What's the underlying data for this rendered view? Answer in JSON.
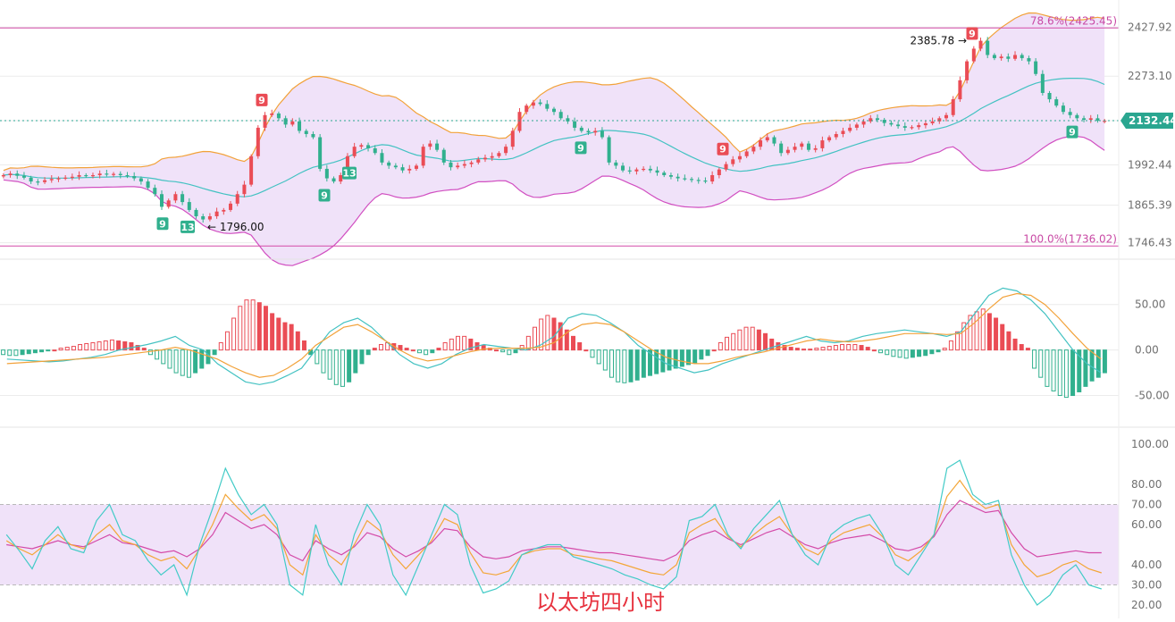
{
  "caption": "以太坊四小时",
  "colors": {
    "up": "#ea4c55",
    "down": "#31b08e",
    "band_fill": "#f0e2f9",
    "upper_band": "#f2a23a",
    "lower_band": "#d14fc1",
    "middle_band": "#43c2c2",
    "fib_line": "#d44aa8",
    "price_tag": "#2aa690",
    "rsi_fast": "#42cbc7",
    "rsi_mid": "#f3a637",
    "rsi_slow": "#d44aa8",
    "grid": "#ececec"
  },
  "chart_data": [
    {
      "type": "candlestick",
      "y_ticks": [
        "2427.92",
        "2273.10",
        "2132.44",
        "1992.44",
        "1865.39",
        "1746.43"
      ],
      "y_tick_values": [
        2427.92,
        2273.1,
        2132.44,
        1992.44,
        1865.39,
        1746.43
      ],
      "ylim": [
        1700,
        2480
      ],
      "last_price": "2132.44",
      "fib_levels": [
        {
          "label": "78.6%(2425.45)",
          "value": 2425.45
        },
        {
          "label": "100.0%(1736.02)",
          "value": 1736.02
        }
      ],
      "annotations": [
        {
          "text": "2385.78 →",
          "x": 1082,
          "y": 2385.78
        },
        {
          "text": "← 1796.00",
          "x": 232,
          "y": 1796.0
        }
      ],
      "markers": [
        {
          "text": "9",
          "kind": "down",
          "x": 182
        },
        {
          "text": "13",
          "kind": "down",
          "x": 210
        },
        {
          "text": "9",
          "kind": "up",
          "x": 293
        },
        {
          "text": "9",
          "kind": "down",
          "x": 363
        },
        {
          "text": "13",
          "kind": "down",
          "x": 391
        },
        {
          "text": "9",
          "kind": "up",
          "x": 809
        },
        {
          "text": "9",
          "kind": "down",
          "x": 650
        },
        {
          "text": "9",
          "kind": "up",
          "x": 1088
        },
        {
          "text": "9",
          "kind": "down",
          "x": 1200
        }
      ],
      "candles_close": [
        1960,
        1965,
        1958,
        1952,
        1940,
        1938,
        1944,
        1948,
        1950,
        1952,
        1955,
        1960,
        1958,
        1960,
        1965,
        1962,
        1964,
        1960,
        1957,
        1950,
        1940,
        1920,
        1900,
        1860,
        1880,
        1900,
        1875,
        1850,
        1830,
        1820,
        1830,
        1845,
        1850,
        1870,
        1900,
        1930,
        2020,
        2110,
        2150,
        2155,
        2140,
        2120,
        2130,
        2100,
        2090,
        2080,
        1980,
        1950,
        1940,
        1960,
        2020,
        2050,
        2055,
        2045,
        2030,
        2000,
        1990,
        1985,
        1975,
        1980,
        1990,
        2050,
        2060,
        2040,
        2000,
        1985,
        1990,
        1995,
        2000,
        2010,
        2015,
        2020,
        2030,
        2050,
        2100,
        2160,
        2180,
        2190,
        2185,
        2170,
        2160,
        2140,
        2130,
        2110,
        2100,
        2095,
        2100,
        2080,
        2000,
        1990,
        1975,
        1972,
        1978,
        1980,
        1975,
        1968,
        1960,
        1955,
        1950,
        1948,
        1945,
        1943,
        1940,
        1960,
        1978,
        1995,
        2010,
        2020,
        2035,
        2050,
        2070,
        2080,
        2060,
        2030,
        2040,
        2050,
        2060,
        2040,
        2045,
        2070,
        2080,
        2090,
        2100,
        2110,
        2120,
        2130,
        2140,
        2135,
        2125,
        2120,
        2115,
        2110,
        2112,
        2118,
        2124,
        2130,
        2140,
        2150,
        2200,
        2260,
        2320,
        2360,
        2385,
        2340,
        2330,
        2335,
        2328,
        2340,
        2330,
        2320,
        2280,
        2220,
        2200,
        2180,
        2160,
        2150,
        2140,
        2135,
        2140,
        2132,
        2132
      ]
    },
    {
      "type": "macd",
      "y_ticks": [
        "50.00",
        "0.00",
        "-50.00"
      ],
      "y_tick_values": [
        50,
        0,
        -50
      ],
      "ylim": [
        -75,
        90
      ],
      "histogram": [
        -5,
        -6,
        -6,
        -5,
        -4,
        -3,
        -2,
        -1,
        0,
        2,
        3,
        4,
        6,
        7,
        8,
        9,
        10,
        11,
        10,
        9,
        8,
        5,
        2,
        -5,
        -10,
        -15,
        -20,
        -25,
        -28,
        -30,
        -25,
        -20,
        -15,
        -5,
        8,
        20,
        35,
        48,
        55,
        55,
        52,
        48,
        40,
        35,
        30,
        28,
        20,
        10,
        -5,
        -15,
        -25,
        -32,
        -38,
        -40,
        -35,
        -25,
        -15,
        -5,
        2,
        6,
        8,
        7,
        5,
        2,
        0,
        -3,
        -5,
        -3,
        2,
        8,
        12,
        15,
        15,
        12,
        8,
        5,
        2,
        0,
        -2,
        -5,
        -3,
        5,
        15,
        25,
        34,
        38,
        35,
        30,
        22,
        15,
        8,
        0,
        -8,
        -15,
        -22,
        -30,
        -35,
        -36,
        -35,
        -33,
        -30,
        -28,
        -26,
        -24,
        -22,
        -20,
        -18,
        -16,
        -14,
        -10,
        -6,
        0,
        8,
        14,
        18,
        22,
        25,
        25,
        22,
        18,
        12,
        8,
        5,
        3,
        2,
        1,
        1,
        2,
        3,
        4,
        5,
        6,
        6,
        6,
        5,
        3,
        0,
        -3,
        -5,
        -7,
        -8,
        -9,
        -8,
        -7,
        -6,
        -4,
        -2,
        2,
        10,
        20,
        30,
        38,
        42,
        45,
        40,
        35,
        28,
        20,
        12,
        6,
        2,
        -20,
        -30,
        -40,
        -45,
        -50,
        -52,
        -50,
        -46,
        -40,
        -34,
        -30,
        -25
      ],
      "dif": [
        -10,
        -11,
        -12,
        -13,
        -12,
        -10,
        -8,
        -5,
        0,
        3,
        6,
        10,
        15,
        5,
        0,
        -15,
        -25,
        -35,
        -38,
        -35,
        -28,
        -20,
        0,
        20,
        30,
        35,
        25,
        10,
        -5,
        -15,
        -20,
        -15,
        -5,
        2,
        6,
        4,
        2,
        0,
        5,
        15,
        35,
        40,
        38,
        30,
        20,
        5,
        -5,
        -15,
        -20,
        -25,
        -22,
        -15,
        -10,
        -5,
        0,
        5,
        10,
        15,
        10,
        8,
        10,
        15,
        18,
        20,
        22,
        20,
        18,
        15,
        20,
        40,
        60,
        68,
        65,
        55,
        40,
        20,
        0,
        -15,
        -25
      ],
      "dea": [
        -15,
        -14,
        -13,
        -12,
        -11,
        -10,
        -9,
        -8,
        -6,
        -4,
        -2,
        0,
        3,
        0,
        -5,
        -10,
        -18,
        -25,
        -30,
        -28,
        -20,
        -10,
        5,
        15,
        25,
        28,
        20,
        10,
        0,
        -8,
        -12,
        -10,
        -6,
        -2,
        1,
        2,
        2,
        2,
        3,
        8,
        20,
        28,
        30,
        28,
        20,
        10,
        0,
        -8,
        -12,
        -15,
        -15,
        -12,
        -8,
        -5,
        -2,
        2,
        6,
        10,
        12,
        10,
        9,
        10,
        12,
        15,
        18,
        18,
        18,
        17,
        18,
        30,
        45,
        58,
        62,
        60,
        50,
        35,
        18,
        2,
        -10
      ]
    },
    {
      "type": "rsi",
      "y_ticks": [
        "100.00",
        "80.00",
        "70.00",
        "60.00",
        "40.00",
        "30.00",
        "20.00"
      ],
      "y_tick_values": [
        100,
        80,
        70,
        60,
        40,
        30,
        20
      ],
      "ylim": [
        16,
        104
      ],
      "overbought": 70,
      "oversold": 30,
      "rsi_fast": [
        55,
        47,
        38,
        52,
        59,
        48,
        46,
        62,
        70,
        55,
        52,
        42,
        35,
        40,
        25,
        50,
        68,
        88,
        75,
        65,
        70,
        60,
        30,
        25,
        60,
        40,
        30,
        55,
        70,
        60,
        35,
        25,
        40,
        55,
        70,
        65,
        40,
        26,
        28,
        32,
        45,
        48,
        50,
        50,
        44,
        42,
        40,
        38,
        35,
        33,
        30,
        28,
        34,
        62,
        64,
        70,
        55,
        48,
        58,
        65,
        72,
        55,
        45,
        40,
        55,
        60,
        63,
        65,
        55,
        40,
        35,
        45,
        55,
        88,
        92,
        75,
        70,
        72,
        45,
        30,
        20,
        25,
        35,
        40,
        30,
        28
      ],
      "rsi_mid": [
        52,
        48,
        45,
        50,
        55,
        50,
        48,
        55,
        60,
        52,
        50,
        45,
        42,
        44,
        38,
        48,
        60,
        75,
        68,
        62,
        65,
        58,
        40,
        35,
        55,
        45,
        40,
        50,
        62,
        57,
        45,
        38,
        45,
        52,
        63,
        60,
        46,
        36,
        35,
        37,
        45,
        47,
        48,
        48,
        45,
        44,
        43,
        42,
        40,
        38,
        36,
        35,
        40,
        56,
        60,
        63,
        54,
        49,
        55,
        60,
        64,
        55,
        48,
        45,
        52,
        56,
        58,
        60,
        54,
        45,
        42,
        47,
        55,
        74,
        82,
        73,
        68,
        70,
        50,
        40,
        34,
        36,
        40,
        42,
        38,
        36
      ],
      "rsi_slow": [
        50,
        49,
        48,
        50,
        52,
        50,
        49,
        52,
        55,
        51,
        50,
        48,
        46,
        47,
        44,
        48,
        55,
        66,
        62,
        58,
        60,
        55,
        45,
        42,
        52,
        48,
        45,
        49,
        56,
        54,
        48,
        44,
        47,
        51,
        58,
        57,
        49,
        44,
        43,
        44,
        47,
        48,
        49,
        49,
        48,
        47,
        46,
        46,
        45,
        44,
        43,
        42,
        45,
        52,
        55,
        57,
        53,
        50,
        53,
        56,
        58,
        54,
        50,
        48,
        51,
        53,
        54,
        55,
        52,
        48,
        47,
        49,
        54,
        65,
        72,
        69,
        66,
        67,
        56,
        48,
        44,
        45,
        46,
        47,
        46,
        46
      ]
    }
  ]
}
